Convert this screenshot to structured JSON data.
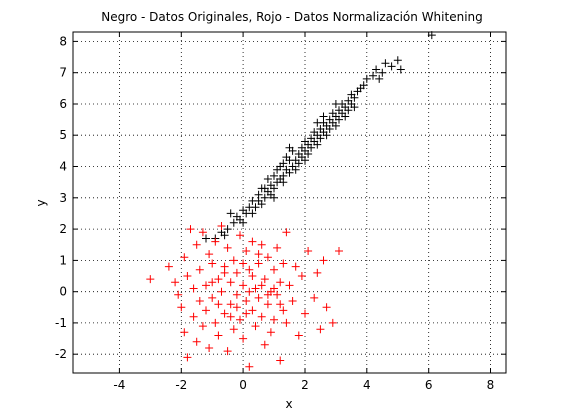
{
  "chart_data": {
    "type": "scatter",
    "title": "Negro - Datos Originales, Rojo - Datos Normalización Whitening",
    "xlabel": "x",
    "ylabel": "y",
    "xlim": [
      -5.5,
      8.5
    ],
    "ylim": [
      -2.6,
      8.3
    ],
    "xticks": [
      -4,
      -2,
      0,
      2,
      4,
      6,
      8
    ],
    "yticks": [
      -2,
      -1,
      0,
      1,
      2,
      3,
      4,
      5,
      6,
      7,
      8
    ],
    "grid": true,
    "marker": "+",
    "series": [
      {
        "color": "#000000",
        "points": [
          [
            -1.2,
            1.7
          ],
          [
            -0.9,
            1.7
          ],
          [
            -0.7,
            1.9
          ],
          [
            -0.6,
            1.8
          ],
          [
            -0.5,
            2.0
          ],
          [
            -0.4,
            2.5
          ],
          [
            -0.3,
            2.2
          ],
          [
            -0.2,
            2.4
          ],
          [
            -0.1,
            2.3
          ],
          [
            0.0,
            2.2
          ],
          [
            0.0,
            2.6
          ],
          [
            0.1,
            2.5
          ],
          [
            0.2,
            2.7
          ],
          [
            0.3,
            2.5
          ],
          [
            0.3,
            2.9
          ],
          [
            0.4,
            2.7
          ],
          [
            0.5,
            2.9
          ],
          [
            0.5,
            3.1
          ],
          [
            0.6,
            2.8
          ],
          [
            0.7,
            3.0
          ],
          [
            0.7,
            3.3
          ],
          [
            0.8,
            3.2
          ],
          [
            0.8,
            3.6
          ],
          [
            0.9,
            3.4
          ],
          [
            0.9,
            3.1
          ],
          [
            1.0,
            3.3
          ],
          [
            1.0,
            3.7
          ],
          [
            1.1,
            3.5
          ],
          [
            1.1,
            3.9
          ],
          [
            1.2,
            3.6
          ],
          [
            1.2,
            4.0
          ],
          [
            1.3,
            3.7
          ],
          [
            1.3,
            4.1
          ],
          [
            1.4,
            3.9
          ],
          [
            1.4,
            4.3
          ],
          [
            1.5,
            3.8
          ],
          [
            1.5,
            4.2
          ],
          [
            1.6,
            4.0
          ],
          [
            1.6,
            4.5
          ],
          [
            1.7,
            4.2
          ],
          [
            1.7,
            3.9
          ],
          [
            1.8,
            4.4
          ],
          [
            1.8,
            4.1
          ],
          [
            1.9,
            4.6
          ],
          [
            1.9,
            4.3
          ],
          [
            2.0,
            4.5
          ],
          [
            2.0,
            4.8
          ],
          [
            2.1,
            4.4
          ],
          [
            2.1,
            4.7
          ],
          [
            2.2,
            4.9
          ],
          [
            2.2,
            4.6
          ],
          [
            2.3,
            4.8
          ],
          [
            2.3,
            5.1
          ],
          [
            2.4,
            4.7
          ],
          [
            2.4,
            5.0
          ],
          [
            2.5,
            5.2
          ],
          [
            2.5,
            4.9
          ],
          [
            2.6,
            5.1
          ],
          [
            2.6,
            5.4
          ],
          [
            2.7,
            5.0
          ],
          [
            2.7,
            5.3
          ],
          [
            2.8,
            5.5
          ],
          [
            2.8,
            5.2
          ],
          [
            2.9,
            5.4
          ],
          [
            2.9,
            5.7
          ],
          [
            3.0,
            5.3
          ],
          [
            3.0,
            5.6
          ],
          [
            3.1,
            5.8
          ],
          [
            3.1,
            5.5
          ],
          [
            3.2,
            5.7
          ],
          [
            3.2,
            6.0
          ],
          [
            3.3,
            5.6
          ],
          [
            3.3,
            5.9
          ],
          [
            3.4,
            6.1
          ],
          [
            3.4,
            5.8
          ],
          [
            3.5,
            6.0
          ],
          [
            3.5,
            6.3
          ],
          [
            3.6,
            6.2
          ],
          [
            3.7,
            6.4
          ],
          [
            3.8,
            6.5
          ],
          [
            3.9,
            6.6
          ],
          [
            4.0,
            6.8
          ],
          [
            4.2,
            6.9
          ],
          [
            4.3,
            7.1
          ],
          [
            4.4,
            6.8
          ],
          [
            4.5,
            7.0
          ],
          [
            4.6,
            7.3
          ],
          [
            4.8,
            7.2
          ],
          [
            5.0,
            7.4
          ],
          [
            5.1,
            7.1
          ],
          [
            6.1,
            8.2
          ],
          [
            1.5,
            4.6
          ],
          [
            2.0,
            4.2
          ],
          [
            2.6,
            5.6
          ],
          [
            3.0,
            6.0
          ],
          [
            1.0,
            3.0
          ],
          [
            0.6,
            3.3
          ],
          [
            2.4,
            5.4
          ],
          [
            3.6,
            5.9
          ],
          [
            1.3,
            3.5
          ]
        ]
      },
      {
        "color": "#ff0000",
        "points": [
          [
            -3.0,
            0.4
          ],
          [
            -2.4,
            0.8
          ],
          [
            -2.2,
            0.3
          ],
          [
            -2.1,
            -0.1
          ],
          [
            -2.0,
            -0.5
          ],
          [
            -1.9,
            1.1
          ],
          [
            -1.9,
            -1.3
          ],
          [
            -1.8,
            0.5
          ],
          [
            -1.8,
            -2.1
          ],
          [
            -1.7,
            2.0
          ],
          [
            -1.6,
            0.1
          ],
          [
            -1.6,
            -0.8
          ],
          [
            -1.5,
            1.5
          ],
          [
            -1.5,
            -1.6
          ],
          [
            -1.4,
            0.7
          ],
          [
            -1.4,
            -0.3
          ],
          [
            -1.3,
            1.9
          ],
          [
            -1.3,
            -1.1
          ],
          [
            -1.2,
            0.2
          ],
          [
            -1.2,
            -0.6
          ],
          [
            -1.1,
            1.2
          ],
          [
            -1.1,
            -1.8
          ],
          [
            -1.0,
            0.9
          ],
          [
            -1.0,
            -0.2
          ],
          [
            -0.9,
            1.6
          ],
          [
            -0.9,
            -1.0
          ],
          [
            -0.8,
            0.4
          ],
          [
            -0.8,
            -1.4
          ],
          [
            -0.7,
            2.1
          ],
          [
            -0.7,
            0.0
          ],
          [
            -0.6,
            0.8
          ],
          [
            -0.6,
            -0.7
          ],
          [
            -0.5,
            1.4
          ],
          [
            -0.5,
            -1.9
          ],
          [
            -0.4,
            0.3
          ],
          [
            -0.4,
            -0.4
          ],
          [
            -0.3,
            1.0
          ],
          [
            -0.3,
            -1.2
          ],
          [
            -0.2,
            0.6
          ],
          [
            -0.2,
            -0.1
          ],
          [
            -0.1,
            1.8
          ],
          [
            -0.1,
            -0.9
          ],
          [
            0.0,
            0.2
          ],
          [
            0.0,
            -1.5
          ],
          [
            0.1,
            1.3
          ],
          [
            0.1,
            -0.3
          ],
          [
            0.2,
            0.7
          ],
          [
            0.2,
            -2.4
          ],
          [
            0.3,
            1.6
          ],
          [
            0.3,
            -0.6
          ],
          [
            0.4,
            0.1
          ],
          [
            0.4,
            -1.1
          ],
          [
            0.5,
            0.9
          ],
          [
            0.5,
            -0.2
          ],
          [
            0.6,
            1.5
          ],
          [
            0.6,
            -0.8
          ],
          [
            0.7,
            0.4
          ],
          [
            0.7,
            -1.7
          ],
          [
            0.8,
            1.1
          ],
          [
            0.8,
            -0.4
          ],
          [
            0.9,
            0.0
          ],
          [
            0.9,
            -1.3
          ],
          [
            1.0,
            0.7
          ],
          [
            1.0,
            -0.9
          ],
          [
            1.1,
            1.4
          ],
          [
            1.1,
            -0.1
          ],
          [
            1.2,
            0.3
          ],
          [
            1.2,
            -2.2
          ],
          [
            1.3,
            0.9
          ],
          [
            1.3,
            -0.6
          ],
          [
            1.4,
            1.9
          ],
          [
            1.4,
            -1.0
          ],
          [
            1.5,
            0.2
          ],
          [
            1.6,
            -0.3
          ],
          [
            1.7,
            0.8
          ],
          [
            1.8,
            -1.4
          ],
          [
            1.9,
            0.5
          ],
          [
            2.0,
            -0.7
          ],
          [
            2.1,
            1.3
          ],
          [
            2.3,
            -0.2
          ],
          [
            2.4,
            0.6
          ],
          [
            2.5,
            -1.2
          ],
          [
            2.6,
            1.0
          ],
          [
            2.7,
            -0.5
          ],
          [
            2.9,
            -1.0
          ],
          [
            3.1,
            1.3
          ],
          [
            -0.6,
            0.6
          ],
          [
            0.2,
            0.0
          ],
          [
            0.6,
            0.2
          ],
          [
            -0.2,
            -0.5
          ],
          [
            1.0,
            0.1
          ],
          [
            0.3,
            0.5
          ],
          [
            -1.0,
            0.3
          ],
          [
            0.8,
            -0.1
          ],
          [
            0.0,
            0.9
          ],
          [
            -0.4,
            -0.8
          ],
          [
            1.2,
            -0.4
          ],
          [
            0.5,
            1.2
          ],
          [
            -0.8,
            -0.4
          ],
          [
            0.1,
            -0.7
          ]
        ]
      }
    ]
  }
}
